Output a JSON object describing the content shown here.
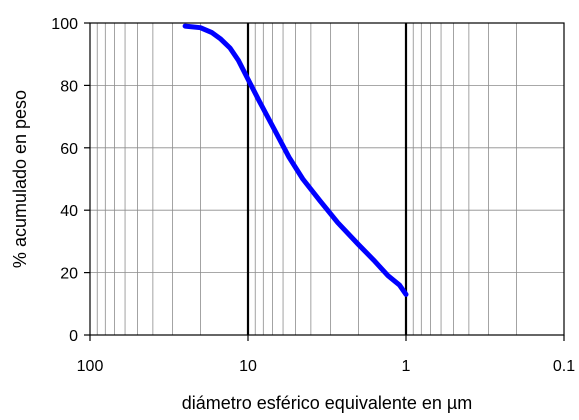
{
  "chart_data": {
    "type": "line",
    "title": "",
    "xlabel": "diámetro esférico equivalente en µm",
    "ylabel": "% acumulado en peso",
    "x_scale": "log",
    "x_reversed": true,
    "xlim": [
      100,
      0.1
    ],
    "ylim": [
      0,
      100
    ],
    "x_ticks": [
      100,
      10,
      1,
      0.1
    ],
    "x_tick_labels": [
      "100",
      "10",
      "1",
      "0.1"
    ],
    "y_ticks": [
      0,
      20,
      40,
      60,
      80,
      100
    ],
    "y_tick_labels": [
      "0",
      "20",
      "40",
      "60",
      "80",
      "100"
    ],
    "grid": true,
    "legend": "none",
    "series": [
      {
        "color": "#0000ff",
        "x": [
          25,
          20,
          17,
          15,
          13,
          11.5,
          10,
          8.5,
          7,
          5.5,
          4.5,
          3.5,
          2.7,
          2,
          1.6,
          1.3,
          1.1,
          1
        ],
        "y": [
          99,
          98.5,
          97,
          95,
          92,
          88,
          82,
          75,
          67,
          57,
          50,
          43,
          36,
          29,
          24,
          19,
          16,
          13
        ]
      }
    ]
  }
}
